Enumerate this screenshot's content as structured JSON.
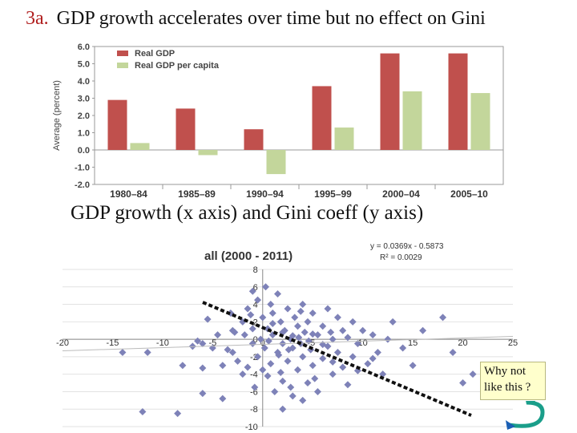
{
  "slide": {
    "number": "3a.",
    "title": "GDP growth accelerates over time but no effect on Gini",
    "subtitle": "GDP growth (x axis) and Gini coeff (y axis)",
    "note": [
      "Why not",
      "like this ?"
    ]
  },
  "chart_data": [
    {
      "type": "bar",
      "categories": [
        "1980–84",
        "1985–89",
        "1990–94",
        "1995–99",
        "2000–04",
        "2005–10"
      ],
      "series": [
        {
          "name": "Real GDP",
          "color": "#c0504d",
          "values": [
            2.9,
            2.4,
            1.2,
            3.7,
            5.6,
            5.6
          ]
        },
        {
          "name": "Real GDP per capita",
          "color": "#c3d69b",
          "values": [
            0.4,
            -0.3,
            -1.4,
            1.3,
            3.4,
            3.3
          ]
        }
      ],
      "ylabel": "Average (percent)",
      "ylim": [
        -2.0,
        6.0
      ],
      "yticks": [
        "-2.0",
        "-1.0",
        "0.0",
        "1.0",
        "2.0",
        "3.0",
        "4.0",
        "5.0",
        "6.0"
      ],
      "grid": false,
      "legend": "top-left"
    },
    {
      "type": "scatter",
      "title": "all (2000 - 2011)",
      "annotation": [
        "y = 0.0369x - 0.5873",
        "R² = 0.0029"
      ],
      "xlim": [
        -20,
        25
      ],
      "ylim": [
        -10,
        8
      ],
      "xticks": [
        "-20",
        "-15",
        "-10",
        "-5",
        "0",
        "5",
        "10",
        "15",
        "20",
        "25"
      ],
      "yticks": [
        "-10",
        "-8",
        "-6",
        "-4",
        "-2",
        "0",
        "2",
        "4",
        "6",
        "8"
      ],
      "marker_color": "#7e82b8",
      "trendline": {
        "slope": 0.0369,
        "intercept": -0.5873
      },
      "grid": true,
      "points": [
        [
          -14,
          -1.5
        ],
        [
          -11.5,
          -1.5
        ],
        [
          -8,
          -3
        ],
        [
          -8.5,
          -8.5
        ],
        [
          -12,
          -8.3
        ],
        [
          -6,
          -3.3
        ],
        [
          -6,
          -0.5
        ],
        [
          -5,
          -1
        ],
        [
          -7,
          -0.8
        ],
        [
          -5.5,
          2.3
        ],
        [
          -6,
          -6.2
        ],
        [
          -4,
          -6.8
        ],
        [
          -4,
          -3
        ],
        [
          -4.5,
          0.5
        ],
        [
          -3,
          1
        ],
        [
          -3,
          -1.5
        ],
        [
          -2.5,
          -2.5
        ],
        [
          -2,
          -4
        ],
        [
          -2,
          2
        ],
        [
          -1.8,
          0.5
        ],
        [
          -1.5,
          3.5
        ],
        [
          -1.5,
          -3.2
        ],
        [
          -1,
          -0.5
        ],
        [
          -1,
          1.2
        ],
        [
          -0.8,
          -5.5
        ],
        [
          -0.5,
          4.5
        ],
        [
          -0.5,
          -2
        ],
        [
          -0.2,
          0
        ],
        [
          0,
          2.5
        ],
        [
          0,
          -3.5
        ],
        [
          0.2,
          -1
        ],
        [
          0.3,
          6
        ],
        [
          0.5,
          1.2
        ],
        [
          0.5,
          -4.2
        ],
        [
          0.8,
          -2.8
        ],
        [
          1,
          0.5
        ],
        [
          1,
          3
        ],
        [
          1.2,
          -6
        ],
        [
          1.5,
          -1.5
        ],
        [
          1.5,
          5.2
        ],
        [
          1.8,
          2
        ],
        [
          2,
          -0.5
        ],
        [
          2,
          -4.8
        ],
        [
          2.2,
          1
        ],
        [
          2.5,
          -2.5
        ],
        [
          2.5,
          3.5
        ],
        [
          2.8,
          0
        ],
        [
          3,
          -1
        ],
        [
          3,
          -6.5
        ],
        [
          3.2,
          2.5
        ],
        [
          3.5,
          -3.5
        ],
        [
          3.5,
          1.5
        ],
        [
          3.8,
          -0.5
        ],
        [
          4,
          4
        ],
        [
          4,
          -2
        ],
        [
          4.2,
          0.8
        ],
        [
          4.5,
          -5
        ],
        [
          4.5,
          2
        ],
        [
          4.8,
          -1.2
        ],
        [
          5,
          3
        ],
        [
          5,
          -3
        ],
        [
          5.5,
          0.5
        ],
        [
          5.5,
          -6
        ],
        [
          6,
          1.5
        ],
        [
          6,
          -2.2
        ],
        [
          6.5,
          3.5
        ],
        [
          6.5,
          -0.8
        ],
        [
          7,
          0
        ],
        [
          7,
          -4
        ],
        [
          7.5,
          2.5
        ],
        [
          7.5,
          -1.5
        ],
        [
          8,
          1
        ],
        [
          8,
          -3.2
        ],
        [
          8.5,
          0.2
        ],
        [
          8.5,
          -5.2
        ],
        [
          9,
          2
        ],
        [
          9,
          -2
        ],
        [
          9.5,
          -0.5
        ],
        [
          10,
          1
        ],
        [
          10.5,
          -2.8
        ],
        [
          11,
          0.5
        ],
        [
          11.5,
          -1.5
        ],
        [
          12,
          -4
        ],
        [
          12.5,
          0
        ],
        [
          13,
          2
        ],
        [
          14,
          -1
        ],
        [
          15,
          -3
        ],
        [
          16,
          1
        ],
        [
          18,
          2.5
        ],
        [
          19,
          -1.5
        ],
        [
          20,
          -5
        ],
        [
          21,
          -4
        ],
        [
          -6.5,
          -0.2
        ],
        [
          -3.5,
          -1.2
        ],
        [
          -2.8,
          0.8
        ],
        [
          -1.2,
          2.8
        ],
        [
          0.8,
          4
        ],
        [
          1.8,
          -3.8
        ],
        [
          2.8,
          -5.5
        ],
        [
          3.8,
          3.2
        ],
        [
          5.2,
          -4.5
        ],
        [
          6.8,
          0.8
        ],
        [
          9.5,
          -3.6
        ],
        [
          11,
          -2.2
        ],
        [
          4,
          -7
        ],
        [
          2,
          -8
        ],
        [
          -1,
          5.5
        ],
        [
          -3.2,
          3
        ],
        [
          1,
          1.8
        ],
        [
          2,
          0.8
        ],
        [
          3,
          0.4
        ],
        [
          4.6,
          -0.2
        ],
        [
          6,
          -0.6
        ],
        [
          0.6,
          -0.2
        ],
        [
          1.6,
          -1.8
        ],
        [
          2.6,
          -1.2
        ],
        [
          3.6,
          0.2
        ],
        [
          5,
          0.6
        ],
        [
          7,
          -2.6
        ]
      ]
    }
  ]
}
